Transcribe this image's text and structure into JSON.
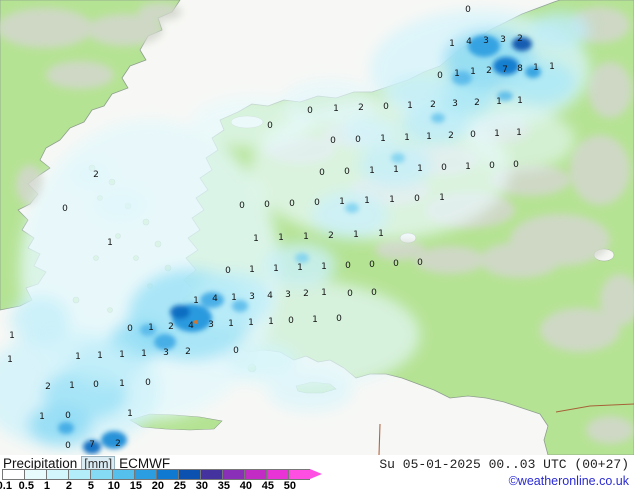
{
  "title_bar": {
    "product": "Precipitation",
    "unit": "[mm]",
    "model": "ECMWF",
    "valid": "Su 05-01-2025 00..03 UTC (00+27)",
    "copyright": "©weatheronline.co.uk"
  },
  "legend": {
    "labels": [
      "0.1",
      "0.5",
      "1",
      "2",
      "5",
      "10",
      "15",
      "20",
      "25",
      "30",
      "35",
      "40",
      "45",
      "50"
    ],
    "colors": [
      "#ffffff",
      "#e9fcfd",
      "#d2f6fb",
      "#b2edf9",
      "#86dbf4",
      "#55c0ec",
      "#2b9ee2",
      "#0f78d0",
      "#0b51b0",
      "#44339e",
      "#8a30b8",
      "#c22cc4",
      "#e933d6",
      "#ff4fe2"
    ],
    "arrow_color": "#ff4fe2"
  },
  "colors": {
    "sea": "#f7f8f5",
    "land": "#b5e394",
    "terrain": "#d3d7cd",
    "coast": "#8e9e8e",
    "border_red": "#a34a28",
    "value_text": "#141414",
    "copyright": "#2a2ad4",
    "date_text": "#222222",
    "arrow": "#ff4fe2"
  },
  "precipitation": {
    "blobs": [
      [
        150,
        270,
        130,
        150,
        "#e4f7fb",
        0.8,
        "soft"
      ],
      [
        300,
        335,
        120,
        55,
        "#e4f7fb",
        0.7,
        "soft"
      ],
      [
        380,
        170,
        130,
        70,
        "#e9fafd",
        0.7,
        "soft"
      ],
      [
        480,
        70,
        110,
        60,
        "#d6f4fb",
        0.8,
        "soft"
      ],
      [
        70,
        390,
        90,
        60,
        "#cff1fa",
        0.8,
        "soft"
      ],
      [
        252,
        122,
        60,
        26,
        "#e7f9fc",
        0.7,
        "soft"
      ],
      [
        330,
        102,
        48,
        22,
        "#e2f7fc",
        0.7,
        "soft"
      ],
      [
        520,
        140,
        55,
        30,
        "#e7f9fc",
        0.6,
        "soft"
      ],
      [
        190,
        315,
        62,
        46,
        "#9fe2f7",
        0.85,
        "soft"
      ],
      [
        232,
        300,
        40,
        28,
        "#bdecf9",
        0.8,
        "soft"
      ],
      [
        300,
        265,
        36,
        22,
        "#caf0fa",
        0.8,
        "soft"
      ],
      [
        350,
        215,
        38,
        24,
        "#caf0fa",
        0.8,
        "soft"
      ],
      [
        395,
        165,
        36,
        22,
        "#c5eff9",
        0.8,
        "soft"
      ],
      [
        435,
        125,
        34,
        20,
        "#bdecf9",
        0.8,
        "soft"
      ],
      [
        465,
        95,
        30,
        20,
        "#aae7f8",
        0.85,
        "soft"
      ],
      [
        490,
        60,
        46,
        30,
        "#8fdcf5",
        0.85,
        "soft"
      ],
      [
        85,
        395,
        42,
        26,
        "#9fe2f7",
        0.85,
        "soft"
      ],
      [
        60,
        425,
        32,
        20,
        "#8fdcf5",
        0.85,
        "soft"
      ],
      [
        140,
        340,
        30,
        20,
        "#8fdcf5",
        0.8,
        "soft"
      ],
      [
        540,
        82,
        36,
        22,
        "#aae7f8",
        0.8,
        "soft"
      ],
      [
        560,
        30,
        30,
        18,
        "#bdecf9",
        0.8,
        "soft"
      ],
      [
        120,
        205,
        26,
        15,
        "#def6fb",
        0.7,
        "soft"
      ],
      [
        90,
        175,
        20,
        12,
        "#def6fb",
        0.7,
        "soft"
      ],
      [
        262,
        360,
        36,
        18,
        "#d2f3fa",
        0.7,
        "soft"
      ],
      [
        310,
        392,
        42,
        20,
        "#daf5fb",
        0.7,
        "soft"
      ],
      [
        420,
        92,
        30,
        16,
        "#c5eff9",
        0.8,
        "soft"
      ],
      [
        370,
        132,
        28,
        16,
        "#d2f3fa",
        0.8,
        "soft"
      ],
      [
        40,
        320,
        30,
        24,
        "#c5eff9",
        0.8,
        "soft"
      ],
      [
        105,
        365,
        35,
        22,
        "#bdecf9",
        0.8,
        "soft"
      ],
      [
        192,
        318,
        20,
        14,
        "#2196dd",
        0.95,
        "core"
      ],
      [
        180,
        312,
        10,
        7,
        "#0d6cc0",
        0.95,
        "core"
      ],
      [
        212,
        300,
        12,
        8,
        "#3fa8e4",
        0.9,
        "core"
      ],
      [
        165,
        342,
        11,
        8,
        "#3fa8e4",
        0.9,
        "core"
      ],
      [
        148,
        330,
        8,
        6,
        "#56b8ea",
        0.9,
        "core"
      ],
      [
        484,
        46,
        16,
        11,
        "#2e9fe0",
        0.95,
        "core"
      ],
      [
        506,
        66,
        13,
        9,
        "#1079cc",
        0.95,
        "core"
      ],
      [
        522,
        44,
        10,
        7,
        "#0a54ae",
        0.95,
        "core"
      ],
      [
        533,
        72,
        8,
        6,
        "#2e9fe0",
        0.9,
        "core"
      ],
      [
        462,
        78,
        10,
        7,
        "#56b8ea",
        0.9,
        "core"
      ],
      [
        114,
        440,
        13,
        9,
        "#1e8cd6",
        0.95,
        "core"
      ],
      [
        92,
        447,
        9,
        7,
        "#0f6ec2",
        0.95,
        "core"
      ],
      [
        66,
        428,
        8,
        6,
        "#3fa8e4",
        0.9,
        "core"
      ],
      [
        240,
        306,
        8,
        6,
        "#56b8ea",
        0.85,
        "core"
      ],
      [
        302,
        258,
        7,
        5,
        "#7dd0f0",
        0.85,
        "core"
      ],
      [
        352,
        208,
        7,
        5,
        "#7dd0f0",
        0.85,
        "core"
      ],
      [
        398,
        158,
        7,
        5,
        "#7dd0f0",
        0.85,
        "core"
      ],
      [
        438,
        118,
        7,
        5,
        "#68c4ec",
        0.85,
        "core"
      ],
      [
        505,
        96,
        8,
        5,
        "#56b8ea",
        0.85,
        "core"
      ]
    ],
    "values": [
      [
        468,
        12,
        "0"
      ],
      [
        452,
        46,
        "1"
      ],
      [
        469,
        44,
        "4"
      ],
      [
        486,
        43,
        "3"
      ],
      [
        503,
        42,
        "3"
      ],
      [
        520,
        41,
        "2"
      ],
      [
        440,
        78,
        "0"
      ],
      [
        457,
        76,
        "1"
      ],
      [
        473,
        74,
        "1"
      ],
      [
        489,
        73,
        "2"
      ],
      [
        505,
        72,
        "7"
      ],
      [
        520,
        71,
        "8"
      ],
      [
        536,
        70,
        "1"
      ],
      [
        552,
        69,
        "1"
      ],
      [
        310,
        113,
        "0"
      ],
      [
        336,
        111,
        "1"
      ],
      [
        361,
        110,
        "2"
      ],
      [
        386,
        109,
        "0"
      ],
      [
        410,
        108,
        "1"
      ],
      [
        433,
        107,
        "2"
      ],
      [
        455,
        106,
        "3"
      ],
      [
        477,
        105,
        "2"
      ],
      [
        499,
        104,
        "1"
      ],
      [
        520,
        103,
        "1"
      ],
      [
        270,
        128,
        "0"
      ],
      [
        333,
        143,
        "0"
      ],
      [
        358,
        142,
        "0"
      ],
      [
        383,
        141,
        "1"
      ],
      [
        407,
        140,
        "1"
      ],
      [
        429,
        139,
        "1"
      ],
      [
        451,
        138,
        "2"
      ],
      [
        473,
        137,
        "0"
      ],
      [
        497,
        136,
        "1"
      ],
      [
        519,
        135,
        "1"
      ],
      [
        96,
        177,
        "2"
      ],
      [
        322,
        175,
        "0"
      ],
      [
        347,
        174,
        "0"
      ],
      [
        372,
        173,
        "1"
      ],
      [
        396,
        172,
        "1"
      ],
      [
        420,
        171,
        "1"
      ],
      [
        444,
        170,
        "0"
      ],
      [
        468,
        169,
        "1"
      ],
      [
        492,
        168,
        "0"
      ],
      [
        516,
        167,
        "0"
      ],
      [
        65,
        211,
        "0"
      ],
      [
        242,
        208,
        "0"
      ],
      [
        267,
        207,
        "0"
      ],
      [
        292,
        206,
        "0"
      ],
      [
        317,
        205,
        "0"
      ],
      [
        342,
        204,
        "1"
      ],
      [
        367,
        203,
        "1"
      ],
      [
        392,
        202,
        "1"
      ],
      [
        417,
        201,
        "0"
      ],
      [
        442,
        200,
        "1"
      ],
      [
        110,
        245,
        "1"
      ],
      [
        256,
        241,
        "1"
      ],
      [
        281,
        240,
        "1"
      ],
      [
        306,
        239,
        "1"
      ],
      [
        331,
        238,
        "2"
      ],
      [
        356,
        237,
        "1"
      ],
      [
        381,
        236,
        "1"
      ],
      [
        228,
        273,
        "0"
      ],
      [
        252,
        272,
        "1"
      ],
      [
        276,
        271,
        "1"
      ],
      [
        300,
        270,
        "1"
      ],
      [
        324,
        269,
        "1"
      ],
      [
        348,
        268,
        "0"
      ],
      [
        372,
        267,
        "0"
      ],
      [
        396,
        266,
        "0"
      ],
      [
        420,
        265,
        "0"
      ],
      [
        196,
        303,
        "1"
      ],
      [
        215,
        301,
        "4"
      ],
      [
        234,
        300,
        "1"
      ],
      [
        252,
        299,
        "3"
      ],
      [
        270,
        298,
        "4"
      ],
      [
        288,
        297,
        "3"
      ],
      [
        306,
        296,
        "2"
      ],
      [
        324,
        295,
        "1"
      ],
      [
        350,
        296,
        "0"
      ],
      [
        374,
        295,
        "0"
      ],
      [
        130,
        331,
        "0"
      ],
      [
        151,
        330,
        "1"
      ],
      [
        171,
        329,
        "2"
      ],
      [
        191,
        328,
        "4"
      ],
      [
        211,
        327,
        "3"
      ],
      [
        231,
        326,
        "1"
      ],
      [
        251,
        325,
        "1"
      ],
      [
        271,
        324,
        "1"
      ],
      [
        291,
        323,
        "0"
      ],
      [
        315,
        322,
        "1"
      ],
      [
        339,
        321,
        "0"
      ],
      [
        12,
        338,
        "1"
      ],
      [
        10,
        362,
        "1"
      ],
      [
        78,
        359,
        "1"
      ],
      [
        100,
        358,
        "1"
      ],
      [
        122,
        357,
        "1"
      ],
      [
        144,
        356,
        "1"
      ],
      [
        166,
        355,
        "3"
      ],
      [
        188,
        354,
        "2"
      ],
      [
        236,
        353,
        "0"
      ],
      [
        48,
        389,
        "2"
      ],
      [
        72,
        388,
        "1"
      ],
      [
        96,
        387,
        "0"
      ],
      [
        122,
        386,
        "1"
      ],
      [
        148,
        385,
        "0"
      ],
      [
        42,
        419,
        "1"
      ],
      [
        68,
        418,
        "0"
      ],
      [
        130,
        416,
        "1"
      ],
      [
        68,
        448,
        "0"
      ],
      [
        92,
        447,
        "7"
      ],
      [
        118,
        446,
        "2"
      ]
    ]
  }
}
